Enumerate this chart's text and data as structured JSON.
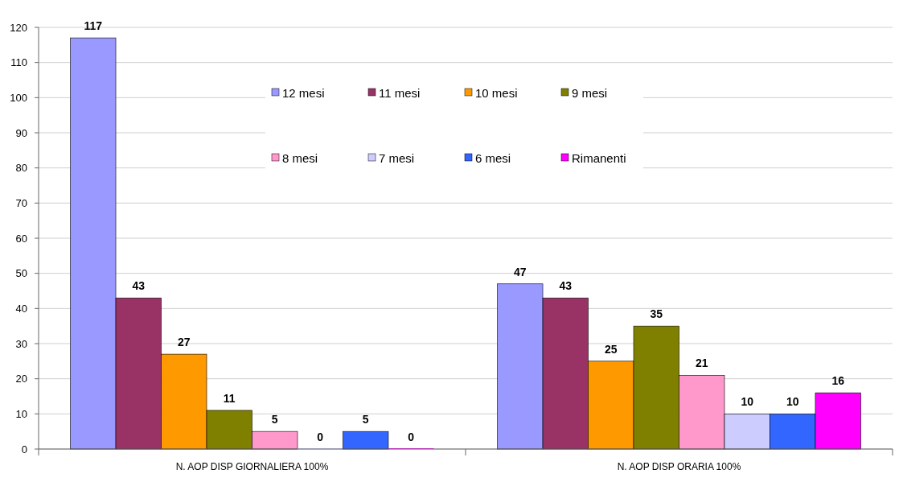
{
  "chart_data": {
    "type": "bar",
    "categories": [
      "N. AOP DISP GIORNALIERA 100%",
      "N. AOP DISP ORARIA 100%"
    ],
    "series": [
      {
        "name": "12 mesi",
        "color": "#9999ff",
        "values": [
          117,
          47
        ]
      },
      {
        "name": "11 mesi",
        "color": "#993366",
        "values": [
          43,
          43
        ]
      },
      {
        "name": "10 mesi",
        "color": "#ff9900",
        "values": [
          27,
          25
        ]
      },
      {
        "name": "9 mesi",
        "color": "#808000",
        "values": [
          11,
          35
        ]
      },
      {
        "name": "8 mesi",
        "color": "#ff99cc",
        "values": [
          5,
          21
        ]
      },
      {
        "name": "7 mesi",
        "color": "#ccccff",
        "values": [
          0,
          10
        ]
      },
      {
        "name": "6 mesi",
        "color": "#3366ff",
        "values": [
          5,
          10
        ]
      },
      {
        "name": "Rimanenti",
        "color": "#ff00ff",
        "values": [
          0,
          16
        ]
      }
    ],
    "ylim": [
      0,
      120
    ],
    "yticks": [
      0,
      10,
      20,
      30,
      40,
      50,
      60,
      70,
      80,
      90,
      100,
      110,
      120
    ],
    "grid": "y",
    "legend": "top",
    "data_labels": true
  }
}
